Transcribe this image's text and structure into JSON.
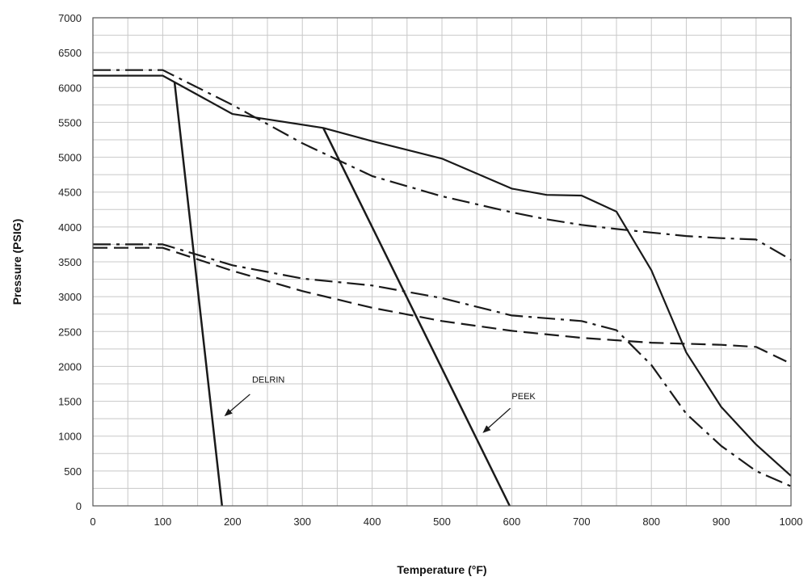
{
  "chart_data": {
    "type": "line",
    "title": "",
    "xlabel": "Temperature (°F)",
    "ylabel": "Pressure (PSIG)",
    "xlim": [
      0,
      1000
    ],
    "ylim": [
      0,
      7000
    ],
    "x_ticks": [
      0,
      100,
      200,
      300,
      400,
      500,
      600,
      700,
      800,
      900,
      1000
    ],
    "y_ticks": [
      0,
      500,
      1000,
      1500,
      2000,
      2500,
      3000,
      3500,
      4000,
      4500,
      5000,
      5500,
      6000,
      6500,
      7000
    ],
    "grid": true,
    "legend": "none",
    "colors": {
      "line": "#1a1a1a",
      "grid": "#c8c8c8",
      "frame": "#555555"
    },
    "series": [
      {
        "style": "solid",
        "width": 2.2,
        "x": [
          0,
          100,
          200,
          330,
          400,
          500,
          600,
          650,
          700,
          750,
          800,
          850,
          900,
          950,
          1000
        ],
        "y": [
          6170,
          6170,
          5620,
          5420,
          5230,
          4980,
          4550,
          4460,
          4450,
          4220,
          3380,
          2200,
          1420,
          880,
          430
        ]
      },
      {
        "style": "dashdot",
        "width": 2.2,
        "x": [
          0,
          100,
          200,
          300,
          400,
          500,
          600,
          650,
          700,
          750,
          800,
          850,
          900,
          950,
          1000
        ],
        "y": [
          6250,
          6250,
          5750,
          5200,
          4730,
          4440,
          4210,
          4110,
          4030,
          3970,
          3920,
          3870,
          3840,
          3820,
          3530
        ]
      },
      {
        "style": "dashdot",
        "width": 2.2,
        "x": [
          0,
          100,
          200,
          300,
          400,
          500,
          600,
          700,
          750,
          800,
          850,
          900,
          950,
          1000
        ],
        "y": [
          3750,
          3750,
          3450,
          3260,
          3160,
          2980,
          2730,
          2650,
          2520,
          2020,
          1320,
          860,
          500,
          280
        ]
      },
      {
        "style": "dashed",
        "width": 2.2,
        "x": [
          0,
          100,
          200,
          300,
          400,
          500,
          600,
          700,
          800,
          900,
          950,
          1000
        ],
        "y": [
          3700,
          3700,
          3370,
          3080,
          2840,
          2650,
          2510,
          2410,
          2340,
          2310,
          2280,
          2040
        ]
      },
      {
        "name": "DELRIN",
        "style": "solid",
        "width": 2.5,
        "x": [
          117,
          185
        ],
        "y": [
          6070,
          0
        ]
      },
      {
        "name": "PEEK",
        "style": "solid",
        "width": 2.5,
        "x": [
          330,
          597
        ],
        "y": [
          5420,
          0
        ]
      }
    ],
    "annotations": [
      {
        "text": "DELRIN",
        "x": 228,
        "y": 1770,
        "arrow_from": [
          225,
          1600
        ],
        "arrow_to": [
          190,
          1300
        ]
      },
      {
        "text": "PEEK",
        "x": 600,
        "y": 1530,
        "arrow_from": [
          598,
          1400
        ],
        "arrow_to": [
          560,
          1060
        ]
      }
    ]
  }
}
